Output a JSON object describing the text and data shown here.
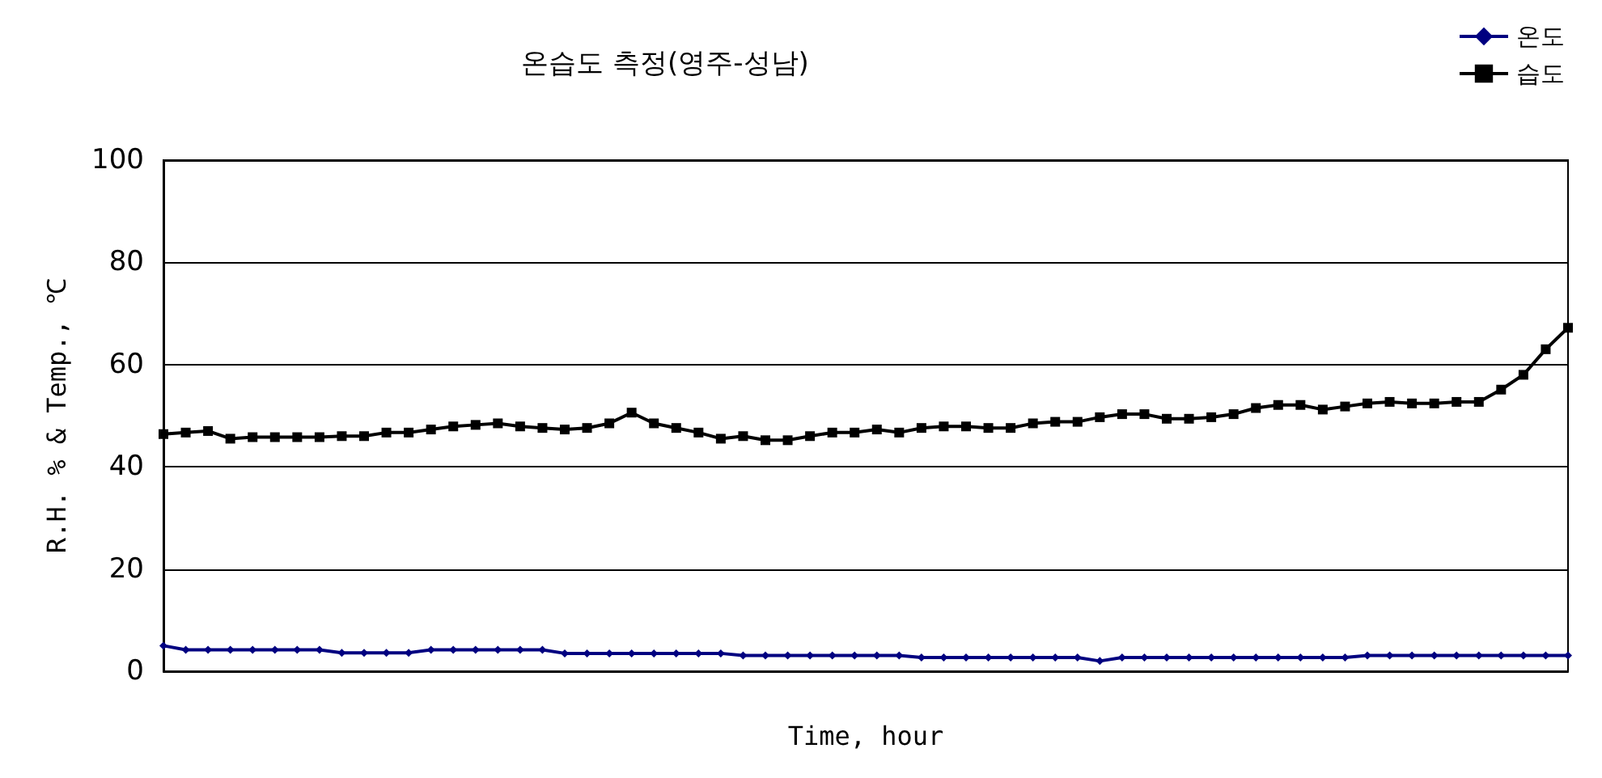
{
  "chart_data": {
    "type": "line",
    "title": "온습도 측정(영주-성남)",
    "xlabel": "Time, hour",
    "ylabel": "R.H. % & Temp., ℃",
    "categories": [
      null,
      null,
      null,
      null,
      null,
      null,
      null,
      null,
      null,
      null,
      null,
      null,
      null,
      null,
      null,
      null,
      null,
      null,
      null,
      null,
      null,
      null,
      null,
      null,
      null,
      null,
      null,
      null,
      null,
      null,
      null,
      null,
      null,
      null,
      null,
      null,
      null,
      null,
      null,
      null,
      null,
      null,
      null,
      null,
      null,
      null,
      null,
      null,
      null,
      null,
      null,
      null,
      null,
      null,
      null,
      null,
      null,
      null,
      null,
      null,
      null,
      null,
      null,
      null
    ],
    "series": [
      {
        "name": "온도",
        "color": "#000080",
        "marker": "diamond",
        "values": [
          5.0,
          4.2,
          4.2,
          4.2,
          4.2,
          4.2,
          4.2,
          4.2,
          3.6,
          3.6,
          3.6,
          3.6,
          4.2,
          4.2,
          4.2,
          4.2,
          4.2,
          4.2,
          3.5,
          3.5,
          3.5,
          3.5,
          3.5,
          3.5,
          3.5,
          3.5,
          3.1,
          3.1,
          3.1,
          3.1,
          3.1,
          3.1,
          3.1,
          3.1,
          2.7,
          2.7,
          2.7,
          2.7,
          2.7,
          2.7,
          2.7,
          2.7,
          2.0,
          2.7,
          2.7,
          2.7,
          2.7,
          2.7,
          2.7,
          2.7,
          2.7,
          2.7,
          2.7,
          2.7,
          3.1,
          3.1,
          3.1,
          3.1,
          3.1,
          3.1,
          3.1,
          3.1,
          3.1,
          3.1
        ]
      },
      {
        "name": "습도",
        "color": "#000000",
        "marker": "square",
        "values": [
          46.4,
          46.7,
          47,
          45.5,
          45.8,
          45.8,
          45.8,
          45.8,
          46,
          46,
          46.7,
          46.7,
          47.3,
          47.9,
          48.2,
          48.5,
          47.9,
          47.6,
          47.3,
          47.6,
          48.5,
          50.6,
          48.5,
          47.6,
          46.7,
          45.5,
          46,
          45.2,
          45.2,
          46,
          46.7,
          46.7,
          47.3,
          46.7,
          47.6,
          47.9,
          47.9,
          47.6,
          47.6,
          48.5,
          48.8,
          48.8,
          49.7,
          50.3,
          50.3,
          49.4,
          49.4,
          49.7,
          50.3,
          51.5,
          52.1,
          52.1,
          51.2,
          51.8,
          52.4,
          52.7,
          52.4,
          52.4,
          52.7,
          52.7,
          55.1,
          58,
          63,
          67.2
        ]
      }
    ],
    "ylim": [
      0,
      100
    ],
    "yticks": [
      0,
      20,
      40,
      60,
      80,
      100
    ],
    "grid": "y",
    "legend": "top right",
    "line_style": "solid"
  }
}
